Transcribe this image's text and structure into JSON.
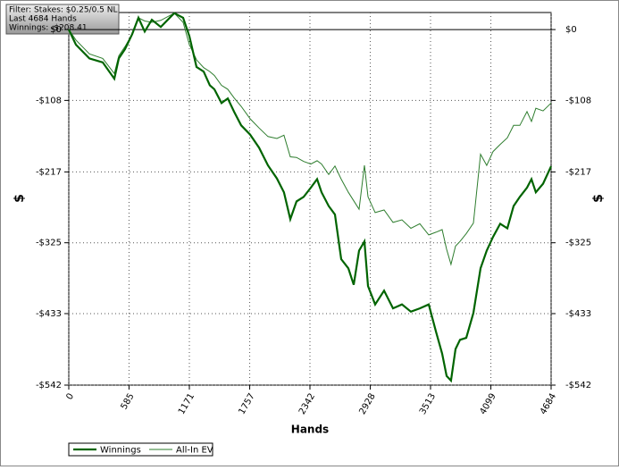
{
  "chart_data": {
    "type": "line",
    "info": [
      "Filter: Stakes: $0.25/0.5 NL",
      "Last 4684 Hands",
      "Winnings: -$208.41"
    ],
    "xlabel": "Hands",
    "ylabel": "$",
    "y2label": "$",
    "x": [
      0,
      69,
      200,
      330,
      442,
      486,
      546,
      616,
      677,
      737,
      807,
      893,
      1024,
      1110,
      1171,
      1240,
      1310,
      1370,
      1414,
      1483,
      1544,
      1605,
      1674,
      1761,
      1848,
      1934,
      2021,
      2090,
      2151,
      2212,
      2281,
      2351,
      2411,
      2455,
      2524,
      2585,
      2646,
      2715,
      2767,
      2819,
      2871,
      2906,
      2975,
      3062,
      3149,
      3235,
      3322,
      3409,
      3496,
      3565,
      3626,
      3669,
      3712,
      3756,
      3799,
      3860,
      3929,
      3999,
      4059,
      4120,
      4190,
      4259,
      4320,
      4380,
      4450,
      4493,
      4536,
      4606,
      4684
    ],
    "series": [
      {
        "name": "Winnings",
        "color": "#006400",
        "values": [
          0,
          -23,
          -44,
          -50,
          -75,
          -44,
          -30,
          -7,
          18,
          -3,
          15,
          4,
          25,
          18,
          -10,
          -57,
          -64,
          -85,
          -91,
          -112,
          -105,
          -125,
          -146,
          -160,
          -180,
          -207,
          -227,
          -248,
          -289,
          -262,
          -255,
          -241,
          -228,
          -248,
          -269,
          -282,
          -350,
          -364,
          -389,
          -337,
          -323,
          -391,
          -419,
          -398,
          -425,
          -419,
          -430,
          -425,
          -419,
          -460,
          -494,
          -528,
          -535,
          -487,
          -473,
          -470,
          -432,
          -364,
          -337,
          -316,
          -296,
          -303,
          -269,
          -255,
          -241,
          -228,
          -248,
          -235,
          -208.41
        ]
      },
      {
        "name": "All-In EV",
        "color": "#2e7d2e",
        "values": [
          0,
          -16,
          -37,
          -44,
          -67,
          -40,
          -26,
          -7,
          18,
          13,
          11,
          14,
          25,
          11,
          -23,
          -46,
          -58,
          -64,
          -70,
          -85,
          -91,
          -104,
          -117,
          -136,
          -150,
          -163,
          -166,
          -161,
          -194,
          -195,
          -201,
          -205,
          -200,
          -205,
          -221,
          -208,
          -228,
          -248,
          -261,
          -274,
          -207,
          -255,
          -279,
          -275,
          -294,
          -290,
          -303,
          -296,
          -313,
          -309,
          -305,
          -335,
          -358,
          -330,
          -323,
          -311,
          -295,
          -190,
          -207,
          -186,
          -175,
          -165,
          -146,
          -146,
          -125,
          -140,
          -120,
          -124,
          -112
        ]
      }
    ],
    "xlim": [
      0,
      4684
    ],
    "xticks": [
      0,
      585,
      1171,
      1757,
      2342,
      2928,
      3513,
      4099,
      4684
    ],
    "ylim": [
      -542,
      26
    ],
    "yticks": [
      {
        "value": 0,
        "label": "$0"
      },
      {
        "value": -108,
        "label": "-$108"
      },
      {
        "value": -217,
        "label": "-$217"
      },
      {
        "value": -325,
        "label": "-$325"
      },
      {
        "value": -433,
        "label": "-$433"
      },
      {
        "value": -542,
        "label": "-$542"
      }
    ],
    "grid": true
  }
}
